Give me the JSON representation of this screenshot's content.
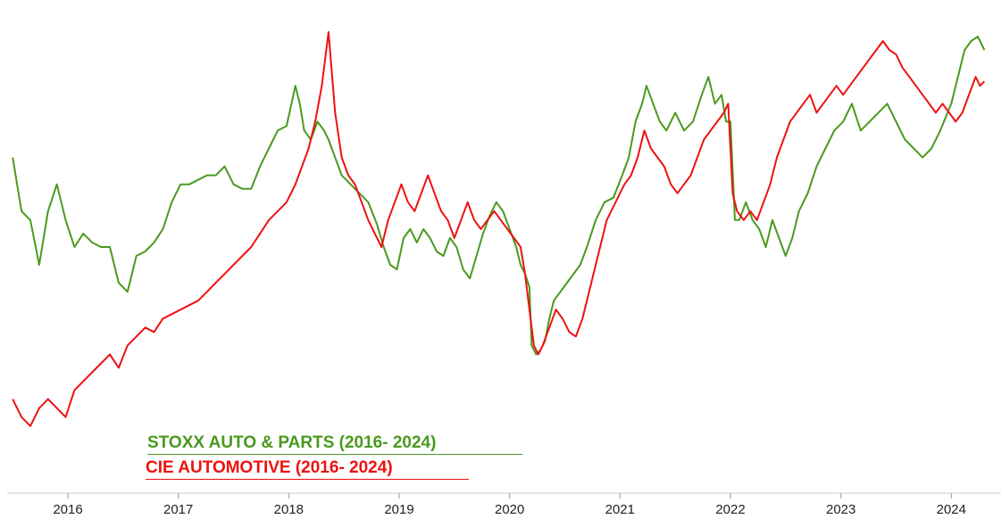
{
  "chart_data": {
    "type": "line",
    "title": "",
    "xlabel": "",
    "ylabel": "",
    "x_tick_labels": [
      "2016",
      "2017",
      "2018",
      "2019",
      "2020",
      "2021",
      "2022",
      "2023",
      "2024"
    ],
    "x_tick_years": [
      2016,
      2017,
      2018,
      2019,
      2020,
      2021,
      2022,
      2023,
      2024
    ],
    "xlim": [
      2015.45,
      2024.45
    ],
    "ylim": [
      0,
      100
    ],
    "grid": false,
    "legend_position": "bottom-left",
    "series": [
      {
        "name": "STOXX AUTO & PARTS (2016- 2024)",
        "color": "#4a9a1e",
        "points": [
          [
            2015.5,
            72
          ],
          [
            2015.58,
            60
          ],
          [
            2015.66,
            58
          ],
          [
            2015.74,
            48
          ],
          [
            2015.82,
            60
          ],
          [
            2015.9,
            66
          ],
          [
            2015.98,
            58
          ],
          [
            2016.06,
            52
          ],
          [
            2016.14,
            55
          ],
          [
            2016.22,
            53
          ],
          [
            2016.3,
            52
          ],
          [
            2016.38,
            52
          ],
          [
            2016.46,
            44
          ],
          [
            2016.54,
            42
          ],
          [
            2016.62,
            50
          ],
          [
            2016.7,
            51
          ],
          [
            2016.78,
            53
          ],
          [
            2016.86,
            56
          ],
          [
            2016.94,
            62
          ],
          [
            2017.02,
            66
          ],
          [
            2017.1,
            66
          ],
          [
            2017.18,
            67
          ],
          [
            2017.26,
            68
          ],
          [
            2017.34,
            68
          ],
          [
            2017.42,
            70
          ],
          [
            2017.5,
            66
          ],
          [
            2017.58,
            65
          ],
          [
            2017.66,
            65
          ],
          [
            2017.74,
            70
          ],
          [
            2017.82,
            74
          ],
          [
            2017.9,
            78
          ],
          [
            2017.98,
            79
          ],
          [
            2018.06,
            88
          ],
          [
            2018.1,
            84
          ],
          [
            2018.14,
            78
          ],
          [
            2018.2,
            76
          ],
          [
            2018.26,
            80
          ],
          [
            2018.32,
            78
          ],
          [
            2018.36,
            76
          ],
          [
            2018.42,
            72
          ],
          [
            2018.48,
            68
          ],
          [
            2018.56,
            66
          ],
          [
            2018.64,
            64
          ],
          [
            2018.72,
            62
          ],
          [
            2018.8,
            57
          ],
          [
            2018.86,
            52
          ],
          [
            2018.92,
            48
          ],
          [
            2018.98,
            47
          ],
          [
            2019.04,
            54
          ],
          [
            2019.1,
            56
          ],
          [
            2019.16,
            53
          ],
          [
            2019.22,
            56
          ],
          [
            2019.28,
            54
          ],
          [
            2019.34,
            51
          ],
          [
            2019.4,
            50
          ],
          [
            2019.46,
            54
          ],
          [
            2019.52,
            52
          ],
          [
            2019.58,
            47
          ],
          [
            2019.64,
            45
          ],
          [
            2019.7,
            50
          ],
          [
            2019.76,
            55
          ],
          [
            2019.82,
            59
          ],
          [
            2019.88,
            62
          ],
          [
            2019.94,
            60
          ],
          [
            2020.0,
            56
          ],
          [
            2020.06,
            52
          ],
          [
            2020.1,
            48
          ],
          [
            2020.14,
            46
          ],
          [
            2020.18,
            43
          ],
          [
            2020.2,
            30
          ],
          [
            2020.24,
            28
          ],
          [
            2020.28,
            29
          ],
          [
            2020.32,
            31
          ],
          [
            2020.36,
            36
          ],
          [
            2020.4,
            40
          ],
          [
            2020.46,
            42
          ],
          [
            2020.52,
            44
          ],
          [
            2020.58,
            46
          ],
          [
            2020.64,
            48
          ],
          [
            2020.7,
            52
          ],
          [
            2020.78,
            58
          ],
          [
            2020.86,
            62
          ],
          [
            2020.94,
            63
          ],
          [
            2021.02,
            68
          ],
          [
            2021.08,
            72
          ],
          [
            2021.14,
            80
          ],
          [
            2021.2,
            84
          ],
          [
            2021.24,
            88
          ],
          [
            2021.3,
            84
          ],
          [
            2021.36,
            80
          ],
          [
            2021.42,
            78
          ],
          [
            2021.5,
            82
          ],
          [
            2021.58,
            78
          ],
          [
            2021.66,
            80
          ],
          [
            2021.74,
            86
          ],
          [
            2021.8,
            90
          ],
          [
            2021.86,
            84
          ],
          [
            2021.92,
            86
          ],
          [
            2021.96,
            80
          ],
          [
            2022.0,
            80
          ],
          [
            2022.04,
            58
          ],
          [
            2022.08,
            58
          ],
          [
            2022.14,
            62
          ],
          [
            2022.2,
            58
          ],
          [
            2022.26,
            56
          ],
          [
            2022.32,
            52
          ],
          [
            2022.38,
            58
          ],
          [
            2022.44,
            54
          ],
          [
            2022.5,
            50
          ],
          [
            2022.56,
            54
          ],
          [
            2022.62,
            60
          ],
          [
            2022.7,
            64
          ],
          [
            2022.78,
            70
          ],
          [
            2022.86,
            74
          ],
          [
            2022.94,
            78
          ],
          [
            2023.02,
            80
          ],
          [
            2023.1,
            84
          ],
          [
            2023.18,
            78
          ],
          [
            2023.26,
            80
          ],
          [
            2023.34,
            82
          ],
          [
            2023.42,
            84
          ],
          [
            2023.5,
            80
          ],
          [
            2023.58,
            76
          ],
          [
            2023.66,
            74
          ],
          [
            2023.74,
            72
          ],
          [
            2023.82,
            74
          ],
          [
            2023.9,
            78
          ],
          [
            2024.0,
            84
          ],
          [
            2024.06,
            90
          ],
          [
            2024.12,
            96
          ],
          [
            2024.18,
            98
          ],
          [
            2024.24,
            99
          ],
          [
            2024.3,
            96
          ]
        ]
      },
      {
        "name": "CIE AUTOMOTIVE (2016- 2024)",
        "color": "#ee1111",
        "points": [
          [
            2015.5,
            18
          ],
          [
            2015.58,
            14
          ],
          [
            2015.66,
            12
          ],
          [
            2015.74,
            16
          ],
          [
            2015.82,
            18
          ],
          [
            2015.9,
            16
          ],
          [
            2015.98,
            14
          ],
          [
            2016.06,
            20
          ],
          [
            2016.14,
            22
          ],
          [
            2016.22,
            24
          ],
          [
            2016.3,
            26
          ],
          [
            2016.38,
            28
          ],
          [
            2016.46,
            25
          ],
          [
            2016.54,
            30
          ],
          [
            2016.62,
            32
          ],
          [
            2016.7,
            34
          ],
          [
            2016.78,
            33
          ],
          [
            2016.86,
            36
          ],
          [
            2016.94,
            37
          ],
          [
            2017.02,
            38
          ],
          [
            2017.1,
            39
          ],
          [
            2017.18,
            40
          ],
          [
            2017.26,
            42
          ],
          [
            2017.34,
            44
          ],
          [
            2017.42,
            46
          ],
          [
            2017.5,
            48
          ],
          [
            2017.58,
            50
          ],
          [
            2017.66,
            52
          ],
          [
            2017.74,
            55
          ],
          [
            2017.82,
            58
          ],
          [
            2017.9,
            60
          ],
          [
            2017.98,
            62
          ],
          [
            2018.06,
            66
          ],
          [
            2018.12,
            70
          ],
          [
            2018.18,
            74
          ],
          [
            2018.24,
            80
          ],
          [
            2018.3,
            88
          ],
          [
            2018.36,
            100
          ],
          [
            2018.42,
            82
          ],
          [
            2018.48,
            72
          ],
          [
            2018.54,
            68
          ],
          [
            2018.6,
            66
          ],
          [
            2018.66,
            62
          ],
          [
            2018.72,
            58
          ],
          [
            2018.78,
            55
          ],
          [
            2018.84,
            52
          ],
          [
            2018.9,
            58
          ],
          [
            2018.96,
            62
          ],
          [
            2019.02,
            66
          ],
          [
            2019.08,
            62
          ],
          [
            2019.14,
            60
          ],
          [
            2019.2,
            64
          ],
          [
            2019.26,
            68
          ],
          [
            2019.32,
            64
          ],
          [
            2019.38,
            60
          ],
          [
            2019.44,
            58
          ],
          [
            2019.5,
            54
          ],
          [
            2019.56,
            58
          ],
          [
            2019.62,
            62
          ],
          [
            2019.68,
            58
          ],
          [
            2019.74,
            56
          ],
          [
            2019.8,
            58
          ],
          [
            2019.86,
            60
          ],
          [
            2019.92,
            58
          ],
          [
            2019.98,
            56
          ],
          [
            2020.04,
            54
          ],
          [
            2020.1,
            52
          ],
          [
            2020.14,
            46
          ],
          [
            2020.18,
            38
          ],
          [
            2020.22,
            30
          ],
          [
            2020.26,
            28
          ],
          [
            2020.3,
            30
          ],
          [
            2020.36,
            34
          ],
          [
            2020.42,
            38
          ],
          [
            2020.48,
            36
          ],
          [
            2020.54,
            33
          ],
          [
            2020.6,
            32
          ],
          [
            2020.66,
            36
          ],
          [
            2020.72,
            42
          ],
          [
            2020.8,
            50
          ],
          [
            2020.88,
            58
          ],
          [
            2020.96,
            62
          ],
          [
            2021.04,
            66
          ],
          [
            2021.1,
            68
          ],
          [
            2021.16,
            72
          ],
          [
            2021.22,
            78
          ],
          [
            2021.28,
            74
          ],
          [
            2021.34,
            72
          ],
          [
            2021.4,
            70
          ],
          [
            2021.46,
            66
          ],
          [
            2021.52,
            64
          ],
          [
            2021.58,
            66
          ],
          [
            2021.64,
            68
          ],
          [
            2021.7,
            72
          ],
          [
            2021.76,
            76
          ],
          [
            2021.82,
            78
          ],
          [
            2021.88,
            80
          ],
          [
            2021.94,
            82
          ],
          [
            2021.98,
            84
          ],
          [
            2022.02,
            64
          ],
          [
            2022.06,
            60
          ],
          [
            2022.12,
            58
          ],
          [
            2022.18,
            60
          ],
          [
            2022.24,
            58
          ],
          [
            2022.3,
            62
          ],
          [
            2022.36,
            66
          ],
          [
            2022.42,
            72
          ],
          [
            2022.48,
            76
          ],
          [
            2022.54,
            80
          ],
          [
            2022.6,
            82
          ],
          [
            2022.66,
            84
          ],
          [
            2022.72,
            86
          ],
          [
            2022.78,
            82
          ],
          [
            2022.84,
            84
          ],
          [
            2022.9,
            86
          ],
          [
            2022.96,
            88
          ],
          [
            2023.02,
            86
          ],
          [
            2023.08,
            88
          ],
          [
            2023.14,
            90
          ],
          [
            2023.2,
            92
          ],
          [
            2023.26,
            94
          ],
          [
            2023.32,
            96
          ],
          [
            2023.38,
            98
          ],
          [
            2023.44,
            96
          ],
          [
            2023.5,
            95
          ],
          [
            2023.56,
            92
          ],
          [
            2023.62,
            90
          ],
          [
            2023.68,
            88
          ],
          [
            2023.74,
            86
          ],
          [
            2023.8,
            84
          ],
          [
            2023.86,
            82
          ],
          [
            2023.92,
            84
          ],
          [
            2023.98,
            82
          ],
          [
            2024.04,
            80
          ],
          [
            2024.1,
            82
          ],
          [
            2024.16,
            86
          ],
          [
            2024.22,
            90
          ],
          [
            2024.26,
            88
          ],
          [
            2024.3,
            89
          ]
        ]
      }
    ]
  }
}
